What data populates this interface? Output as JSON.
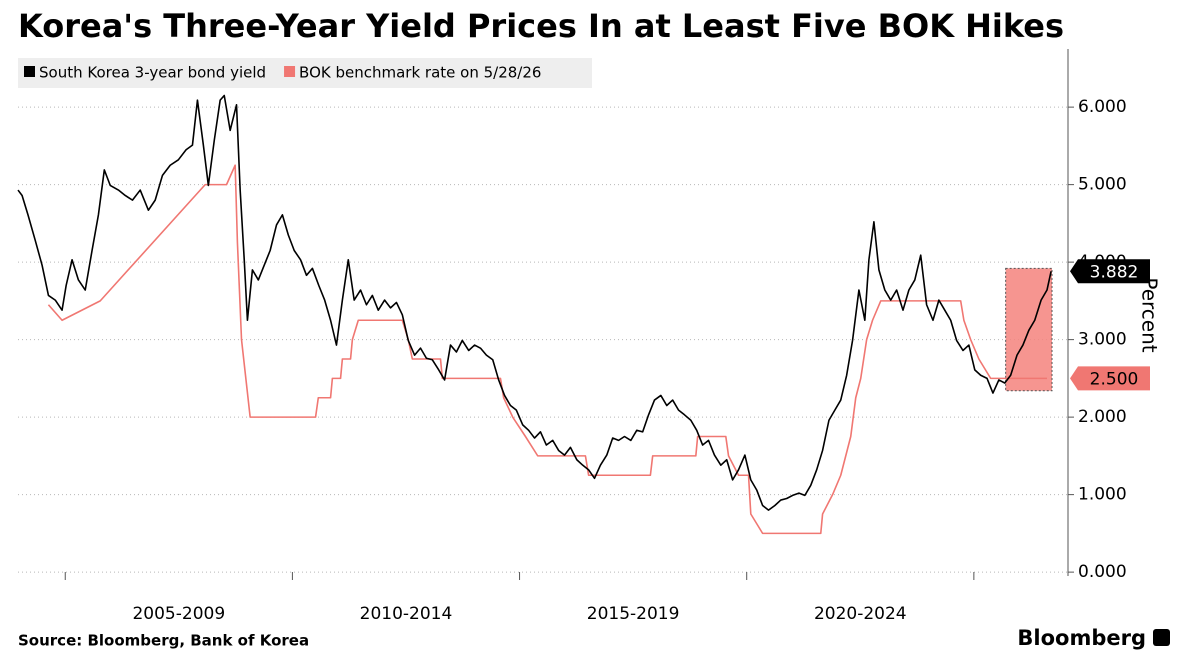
{
  "chart_data": {
    "type": "line",
    "title": "Korea's Three-Year Yield Prices In at Least Five BOK Hikes",
    "y_label": "Percent",
    "source": "Source: Bloomberg, Bank of Korea",
    "brand": "Bloomberg",
    "xlim": [
      2003.96,
      2026.72
    ],
    "ylim": [
      -0.05,
      6.75
    ],
    "yticks": [
      {
        "value": 0,
        "label": "0.000"
      },
      {
        "value": 1,
        "label": "1.000"
      },
      {
        "value": 2,
        "label": "2.000"
      },
      {
        "value": 3,
        "label": "3.000"
      },
      {
        "value": 4,
        "label": "4.000"
      },
      {
        "value": 5,
        "label": "5.000"
      },
      {
        "value": 6,
        "label": "6.000"
      }
    ],
    "xticks": [
      {
        "value": 2007.5,
        "label": "2005-2009"
      },
      {
        "value": 2012.5,
        "label": "2010-2014"
      },
      {
        "value": 2017.5,
        "label": "2015-2019"
      },
      {
        "value": 2022.5,
        "label": "2020-2024"
      }
    ],
    "xbounds": [
      2005,
      2010,
      2015,
      2020,
      2025
    ],
    "grid": true,
    "highlight": {
      "x": [
        2025.7,
        2026.72
      ],
      "y": [
        2.34,
        3.92
      ],
      "color": "#f4827d"
    },
    "series": [
      {
        "name": "South Korea 3-year bond yield",
        "color": "#000000",
        "end_label": "3.882",
        "x": [
          2003.96,
          2004.05,
          2004.18,
          2004.34,
          2004.49,
          2004.63,
          2004.78,
          2004.93,
          2005.02,
          2005.15,
          2005.29,
          2005.44,
          2005.59,
          2005.73,
          2005.86,
          2005.99,
          2006.17,
          2006.32,
          2006.48,
          2006.65,
          2006.83,
          2006.98,
          2007.14,
          2007.31,
          2007.49,
          2007.66,
          2007.8,
          2007.91,
          2008.04,
          2008.15,
          2008.28,
          2008.41,
          2008.5,
          2008.63,
          2008.77,
          2008.85,
          2008.94,
          2009.01,
          2009.12,
          2009.25,
          2009.38,
          2009.51,
          2009.65,
          2009.78,
          2009.91,
          2010.04,
          2010.18,
          2010.31,
          2010.44,
          2010.58,
          2010.71,
          2010.84,
          2010.97,
          2011.1,
          2011.23,
          2011.36,
          2011.5,
          2011.63,
          2011.76,
          2011.89,
          2012.03,
          2012.16,
          2012.29,
          2012.42,
          2012.55,
          2012.69,
          2012.82,
          2012.95,
          2013.08,
          2013.22,
          2013.35,
          2013.48,
          2013.61,
          2013.74,
          2013.88,
          2014.01,
          2014.14,
          2014.27,
          2014.41,
          2014.54,
          2014.67,
          2014.8,
          2014.93,
          2015.07,
          2015.2,
          2015.33,
          2015.46,
          2015.59,
          2015.73,
          2015.86,
          2015.99,
          2016.12,
          2016.26,
          2016.39,
          2016.52,
          2016.65,
          2016.78,
          2016.92,
          2017.05,
          2017.18,
          2017.31,
          2017.45,
          2017.58,
          2017.71,
          2017.84,
          2017.97,
          2018.11,
          2018.24,
          2018.37,
          2018.5,
          2018.63,
          2018.77,
          2018.9,
          2019.03,
          2019.16,
          2019.29,
          2019.43,
          2019.56,
          2019.69,
          2019.82,
          2019.96,
          2020.09,
          2020.22,
          2020.35,
          2020.48,
          2020.62,
          2020.75,
          2020.88,
          2021.01,
          2021.15,
          2021.28,
          2021.41,
          2021.54,
          2021.67,
          2021.81,
          2021.94,
          2022.07,
          2022.2,
          2022.33,
          2022.47,
          2022.6,
          2022.69,
          2022.8,
          2022.91,
          2023.04,
          2023.17,
          2023.3,
          2023.44,
          2023.57,
          2023.7,
          2023.83,
          2023.96,
          2024.1,
          2024.23,
          2024.36,
          2024.49,
          2024.62,
          2024.76,
          2024.89,
          2025.02,
          2025.15,
          2025.29,
          2025.42,
          2025.55,
          2025.68,
          2025.81,
          2025.95,
          2026.08,
          2026.21,
          2026.34,
          2026.48,
          2026.61,
          2026.7
        ],
        "values": [
          4.93,
          4.86,
          4.61,
          4.28,
          3.96,
          3.57,
          3.51,
          3.38,
          3.7,
          4.03,
          3.77,
          3.64,
          4.15,
          4.61,
          5.19,
          4.99,
          4.93,
          4.86,
          4.8,
          4.93,
          4.67,
          4.8,
          5.12,
          5.25,
          5.32,
          5.45,
          5.51,
          6.09,
          5.51,
          4.99,
          5.57,
          6.09,
          6.15,
          5.7,
          6.03,
          4.93,
          4.03,
          3.25,
          3.9,
          3.77,
          3.96,
          4.15,
          4.48,
          4.61,
          4.35,
          4.15,
          4.03,
          3.83,
          3.92,
          3.7,
          3.51,
          3.25,
          2.93,
          3.51,
          4.03,
          3.51,
          3.64,
          3.45,
          3.57,
          3.38,
          3.51,
          3.41,
          3.48,
          3.32,
          2.99,
          2.8,
          2.89,
          2.76,
          2.74,
          2.61,
          2.48,
          2.93,
          2.84,
          2.99,
          2.86,
          2.93,
          2.89,
          2.8,
          2.74,
          2.48,
          2.28,
          2.15,
          2.09,
          1.9,
          1.83,
          1.73,
          1.81,
          1.64,
          1.7,
          1.57,
          1.51,
          1.61,
          1.45,
          1.38,
          1.32,
          1.21,
          1.38,
          1.51,
          1.73,
          1.7,
          1.75,
          1.7,
          1.83,
          1.81,
          2.03,
          2.22,
          2.28,
          2.15,
          2.22,
          2.09,
          2.03,
          1.96,
          1.83,
          1.64,
          1.7,
          1.51,
          1.38,
          1.45,
          1.19,
          1.32,
          1.51,
          1.19,
          1.06,
          0.86,
          0.8,
          0.86,
          0.93,
          0.95,
          0.99,
          1.02,
          0.99,
          1.12,
          1.32,
          1.57,
          1.96,
          2.09,
          2.22,
          2.54,
          2.99,
          3.64,
          3.25,
          4.03,
          4.52,
          3.9,
          3.64,
          3.51,
          3.64,
          3.38,
          3.64,
          3.77,
          4.09,
          3.45,
          3.25,
          3.51,
          3.38,
          3.25,
          2.99,
          2.86,
          2.93,
          2.61,
          2.54,
          2.5,
          2.31,
          2.48,
          2.44,
          2.54,
          2.8,
          2.93,
          3.12,
          3.25,
          3.51,
          3.64,
          3.882
        ]
      },
      {
        "name": "BOK benchmark rate on 5/28/26",
        "color": "#f07772",
        "end_label": "2.500",
        "x": [
          2004.63,
          2004.93,
          2005.77,
          2008.08,
          2008.55,
          2008.74,
          2008.79,
          2008.88,
          2009.07,
          2010.51,
          2010.57,
          2010.84,
          2010.88,
          2011.06,
          2011.1,
          2011.28,
          2011.32,
          2011.45,
          2012.42,
          2012.55,
          2012.64,
          2013.26,
          2013.3,
          2014.58,
          2014.65,
          2014.85,
          2015.13,
          2015.4,
          2016.45,
          2016.52,
          2017.88,
          2017.93,
          2018.88,
          2018.92,
          2019.54,
          2019.6,
          2019.82,
          2020.04,
          2020.09,
          2020.35,
          2021.63,
          2021.67,
          2021.89,
          2022.07,
          2022.18,
          2022.29,
          2022.4,
          2022.51,
          2022.64,
          2022.77,
          2022.95,
          2024.71,
          2024.78,
          2024.93,
          2025.11,
          2025.37,
          2026.61
        ],
        "values": [
          3.45,
          3.25,
          3.5,
          5.0,
          5.0,
          5.25,
          4.25,
          3.0,
          2.0,
          2.0,
          2.25,
          2.25,
          2.5,
          2.5,
          2.75,
          2.75,
          3.0,
          3.25,
          3.25,
          3.0,
          2.75,
          2.75,
          2.5,
          2.5,
          2.25,
          2.0,
          1.75,
          1.5,
          1.5,
          1.25,
          1.25,
          1.5,
          1.5,
          1.75,
          1.75,
          1.5,
          1.25,
          1.25,
          0.75,
          0.5,
          0.5,
          0.75,
          1.0,
          1.25,
          1.5,
          1.75,
          2.25,
          2.5,
          3.0,
          3.25,
          3.5,
          3.5,
          3.25,
          3.0,
          2.75,
          2.5,
          2.5
        ]
      }
    ]
  }
}
